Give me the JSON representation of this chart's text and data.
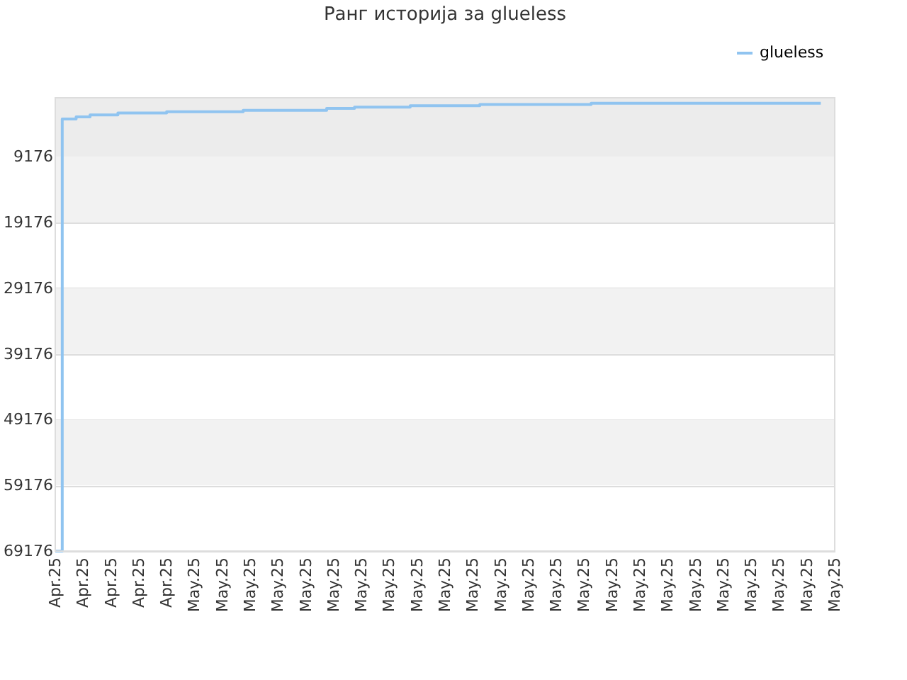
{
  "chart_data": {
    "type": "step",
    "title": "Ранг историја за glueless",
    "categories": [
      "Apr.25",
      null,
      null,
      null,
      "Apr.25",
      null,
      null,
      null,
      "Apr.25",
      null,
      null,
      null,
      "Apr.25",
      null,
      null,
      null,
      "Apr.25",
      null,
      null,
      null,
      "May.25",
      null,
      null,
      null,
      "May.25",
      null,
      null,
      null,
      "May.25",
      null,
      null,
      null,
      "May.25",
      null,
      null,
      null,
      "May.25",
      null,
      null,
      null,
      "May.25",
      null,
      null,
      null,
      "May.25",
      null,
      null,
      null,
      "May.25",
      null,
      null,
      null,
      "May.25",
      null,
      null,
      null,
      "May.25",
      null,
      null,
      null,
      "May.25",
      null,
      null,
      null,
      "May.25",
      null,
      null,
      null,
      "May.25",
      null,
      null,
      null,
      "May.25",
      null,
      null,
      null,
      "May.25",
      null,
      null,
      null,
      "May.25",
      null,
      null,
      null,
      "May.25",
      null,
      null,
      null,
      "May.25",
      null,
      null,
      null,
      "May.25",
      null,
      null,
      null,
      "May.25",
      null,
      null,
      null,
      "May.25",
      null,
      null,
      null,
      "May.25",
      null,
      null,
      null,
      "May.25",
      null,
      null,
      null,
      "May.25"
    ],
    "ylim": [
      69176,
      176
    ],
    "yticks": [
      9176,
      19176,
      29176,
      39176,
      49176,
      59176,
      69176
    ],
    "bands": [
      {
        "axis": "y",
        "from": 176,
        "to": 9176,
        "color": "#ececec"
      },
      {
        "axis": "y",
        "from": 9176,
        "to": 19176,
        "color": "#f2f2f2"
      },
      {
        "axis": "y",
        "from": 29176,
        "to": 39176,
        "color": "#f2f2f2"
      },
      {
        "axis": "y",
        "from": 49176,
        "to": 59176,
        "color": "#f2f2f2"
      }
    ],
    "grid": "y",
    "legend": "top right",
    "line_style": "solid",
    "marker": "none",
    "series": [
      {
        "name": "glueless",
        "color": "#90c4f0",
        "values": [
          69176,
          3400,
          3400,
          3100,
          3100,
          2800,
          2800,
          2800,
          2800,
          2500,
          2500,
          2500,
          2500,
          2500,
          2500,
          2500,
          2300,
          2300,
          2300,
          2300,
          2300,
          2300,
          2300,
          2300,
          2300,
          2300,
          2300,
          2100,
          2100,
          2100,
          2100,
          2100,
          2100,
          2100,
          2100,
          2100,
          2100,
          2100,
          2100,
          1800,
          1800,
          1800,
          1800,
          1600,
          1600,
          1600,
          1600,
          1600,
          1600,
          1600,
          1600,
          1400,
          1400,
          1400,
          1400,
          1400,
          1400,
          1400,
          1400,
          1400,
          1400,
          1200,
          1200,
          1200,
          1200,
          1200,
          1200,
          1200,
          1200,
          1200,
          1200,
          1200,
          1200,
          1200,
          1200,
          1200,
          1200,
          1000,
          1000,
          1000,
          1000,
          1000,
          1000,
          1000,
          1000,
          1000,
          1000,
          1000,
          1000,
          1000,
          1000,
          1000,
          1000,
          1000,
          1000,
          1000,
          1000,
          1000,
          1000,
          1000,
          1000,
          1000,
          1000,
          1000,
          1000,
          1000,
          1000,
          1000,
          1000,
          1000,
          1000,
          null,
          null
        ]
      }
    ]
  }
}
